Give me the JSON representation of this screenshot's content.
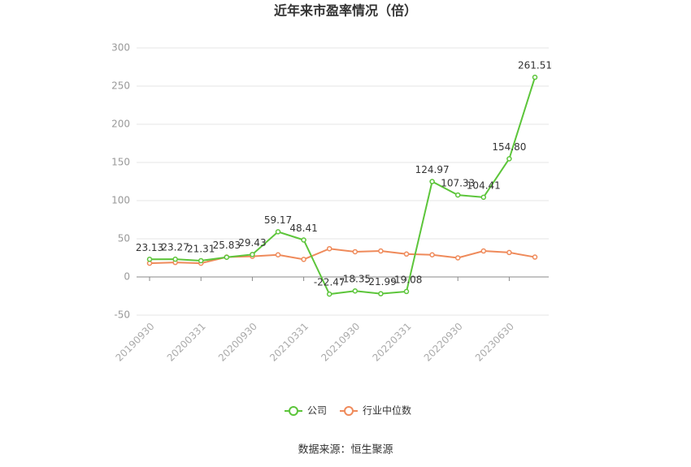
{
  "chart_data": {
    "type": "line",
    "title": "近年来市盈率情况（倍）",
    "categories": [
      "20190930",
      null,
      "20200331",
      null,
      "20200930",
      null,
      "20210331",
      null,
      "20210930",
      null,
      "20220331",
      null,
      "20220930",
      null,
      "20230630",
      null
    ],
    "series": [
      {
        "name": "公司",
        "color": "#5cc53a",
        "values": [
          23.13,
          23.27,
          21.31,
          25.83,
          29.43,
          59.17,
          48.41,
          -22.47,
          -18.35,
          -21.99,
          -19.08,
          124.97,
          107.33,
          104.41,
          154.8,
          261.51
        ],
        "value_labels": [
          "23.13",
          "23.27",
          "21.31",
          "25.83",
          "29.43",
          "59.17",
          "48.41",
          "-22.47",
          "-18.35",
          "-21.99",
          "-19.08",
          "124.97",
          "107.33",
          "104.41",
          "154.80",
          "261.51"
        ]
      },
      {
        "name": "行业中位数",
        "color": "#ef8a5a",
        "values": [
          18,
          19,
          18,
          26,
          27,
          29,
          23,
          37,
          33,
          34,
          30,
          29,
          25,
          34,
          32,
          26
        ]
      }
    ],
    "ylim": [
      -50,
      300
    ],
    "yticks": [
      -50,
      0,
      50,
      100,
      150,
      200,
      250,
      300
    ],
    "grid": true,
    "source": "数据来源：恒生聚源"
  }
}
